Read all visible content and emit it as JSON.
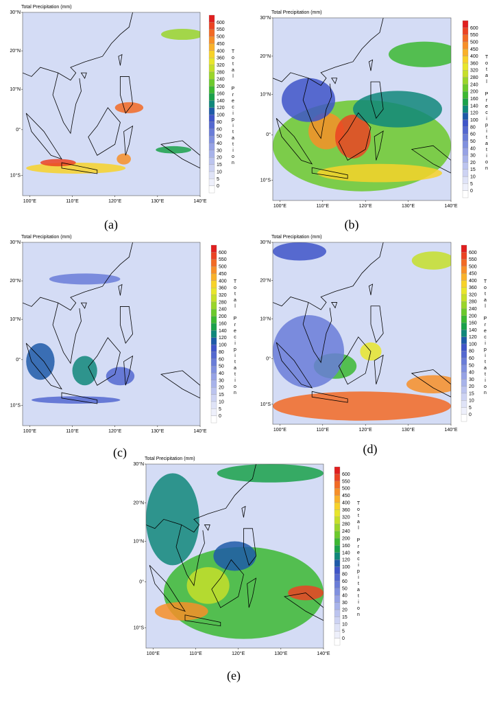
{
  "title": "Total Precipitation (mm)",
  "panels": [
    {
      "label": "(a)"
    },
    {
      "label": "(b)"
    },
    {
      "label": "(c)"
    },
    {
      "label": "(d)"
    },
    {
      "label": "(e)"
    }
  ],
  "lat_labels": [
    "30°N",
    "20°N",
    "10°N",
    "0°",
    "10°S"
  ],
  "lon_labels": [
    "100°E",
    "110°E",
    "120°E",
    "130°E",
    "140°E"
  ],
  "colorbar": {
    "title": "Total Precipitation",
    "levels": [
      0,
      5,
      10,
      15,
      20,
      30,
      40,
      50,
      60,
      80,
      100,
      120,
      140,
      160,
      200,
      240,
      280,
      320,
      360,
      400,
      450,
      500,
      550,
      600
    ],
    "colors": [
      "#ffffff",
      "#eef0fb",
      "#dfe3f7",
      "#cdd3f3",
      "#bcc4ef",
      "#a8b3ea",
      "#96a2e5",
      "#8090df",
      "#6a7dd8",
      "#5468d0",
      "#3f55c8",
      "#1e5aa8",
      "#10877a",
      "#1aa14a",
      "#3cb832",
      "#6cc92c",
      "#9ad52a",
      "#c6df2a",
      "#e8e62c",
      "#f7d22a",
      "#f9b12a",
      "#f78f28",
      "#f26a25",
      "#eb4323",
      "#e01f1f"
    ]
  }
}
